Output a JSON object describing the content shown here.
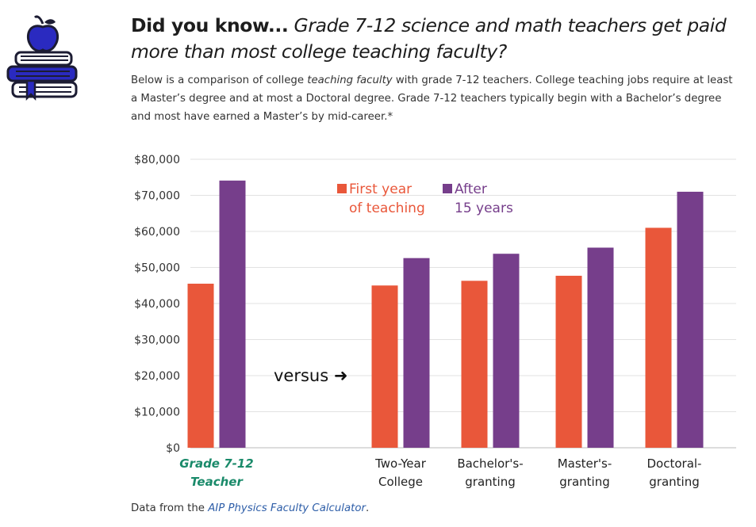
{
  "header": {
    "headline_lead": "Did you know...",
    "headline_rest": "Grade 7-12 science and math teachers get paid more than most college teaching faculty?",
    "intro_before": "Below is a comparison of college ",
    "intro_em": "teaching faculty",
    "intro_after": " with grade 7-12 teachers. College teaching jobs require at least a Master’s degree and at most a Doctoral degree. Grade 7-12 teachers typically begin with a Bachelor’s degree and most have earned a Master’s by mid-career.*"
  },
  "logo": {
    "icon": "apple-on-books-icon"
  },
  "footer": {
    "source_before": "Data from the ",
    "source_link": "AIP Physics Faculty Calculator",
    "source_after": "."
  },
  "chart_data": {
    "type": "bar",
    "categories": [
      [
        "Grade 7-12",
        "Teacher"
      ],
      [
        "Two-Year",
        "College"
      ],
      [
        "Bachelor's-",
        "granting"
      ],
      [
        "Master's-",
        "granting"
      ],
      [
        "Doctoral-",
        "granting"
      ]
    ],
    "highlight_category": 0,
    "series": [
      {
        "name_lines": [
          "First year",
          "of teaching"
        ],
        "color": "#e9573a",
        "values": [
          45500,
          45000,
          46300,
          47700,
          61000
        ]
      },
      {
        "name_lines": [
          "After",
          "15 years"
        ],
        "color": "#763e8b",
        "values": [
          74100,
          52600,
          53800,
          55500,
          71000
        ]
      }
    ],
    "yticks": [
      "$0",
      "$10,000",
      "$20,000",
      "$30,000",
      "$40,000",
      "$50,000",
      "$60,000",
      "$70,000",
      "$80,000"
    ],
    "ylim": [
      0,
      80000
    ],
    "grid": true,
    "legend": "top-center",
    "annotation": "versus ➜",
    "highlight_color": "#1a8a6a"
  }
}
